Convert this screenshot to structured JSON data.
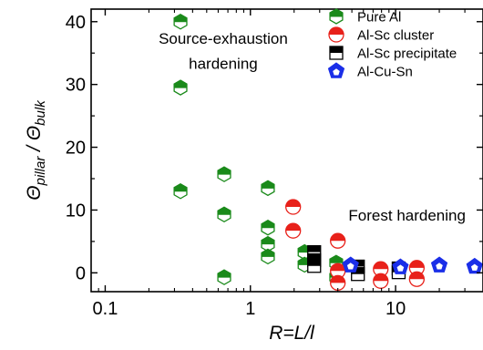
{
  "chart_data": {
    "type": "scatter",
    "xscale": "log",
    "xlabel": "R=L/l",
    "ylabel": "Θpillar / Θbulk",
    "xlim": [
      0.08,
      40
    ],
    "ylim": [
      -3,
      42
    ],
    "xticks": [
      0.1,
      1,
      10
    ],
    "xtick_labels": [
      "0.1",
      "1",
      "10"
    ],
    "yticks": [
      0,
      10,
      20,
      30,
      40
    ],
    "ytick_labels": [
      "0",
      "10",
      "20",
      "30",
      "40"
    ],
    "grid": false,
    "legend_position": "top-right",
    "annotations": [
      {
        "text": "Source-exhaustion",
        "x": 0.65,
        "y": 36.5
      },
      {
        "text": "hardening",
        "x": 0.65,
        "y": 32.5
      },
      {
        "text": "Forest hardening",
        "x": 12,
        "y": 8.3
      }
    ],
    "series": [
      {
        "name": "Pure Al",
        "marker": "hexagon-half",
        "color": "#1a8a1a",
        "points": [
          [
            0.33,
            40.0
          ],
          [
            0.33,
            29.5
          ],
          [
            0.33,
            13.0
          ],
          [
            0.66,
            15.7
          ],
          [
            0.66,
            9.3
          ],
          [
            0.66,
            -0.7
          ],
          [
            1.32,
            13.5
          ],
          [
            1.32,
            7.2
          ],
          [
            1.32,
            4.6
          ],
          [
            1.32,
            2.6
          ],
          [
            2.36,
            3.3
          ],
          [
            2.36,
            1.3
          ],
          [
            3.9,
            1.6
          ],
          [
            3.9,
            -0.7
          ]
        ]
      },
      {
        "name": "Al-Sc cluster",
        "marker": "circle-half",
        "color": "#e8211a",
        "points": [
          [
            1.97,
            10.5
          ],
          [
            1.97,
            6.7
          ],
          [
            4.0,
            5.1
          ],
          [
            4.0,
            0.3
          ],
          [
            4.0,
            -1.6
          ],
          [
            7.9,
            0.6
          ],
          [
            7.9,
            -1.3
          ],
          [
            14.0,
            0.8
          ],
          [
            14.0,
            -1.0
          ]
        ]
      },
      {
        "name": "Al-Sc precipitate",
        "marker": "square-half",
        "color": "#000000",
        "points": [
          [
            2.75,
            3.3
          ],
          [
            2.75,
            2.0
          ],
          [
            2.75,
            1.1
          ],
          [
            5.5,
            1.0
          ],
          [
            5.5,
            -0.2
          ],
          [
            10.5,
            0.7
          ],
          [
            10.5,
            0.1
          ]
        ]
      },
      {
        "name": "Al-Cu-Sn",
        "marker": "pentagon",
        "color": "#1a2ee8",
        "points": [
          [
            4.9,
            1.2
          ],
          [
            10.8,
            0.9
          ],
          [
            20.0,
            1.2
          ],
          [
            35.0,
            1.0
          ]
        ]
      }
    ]
  }
}
